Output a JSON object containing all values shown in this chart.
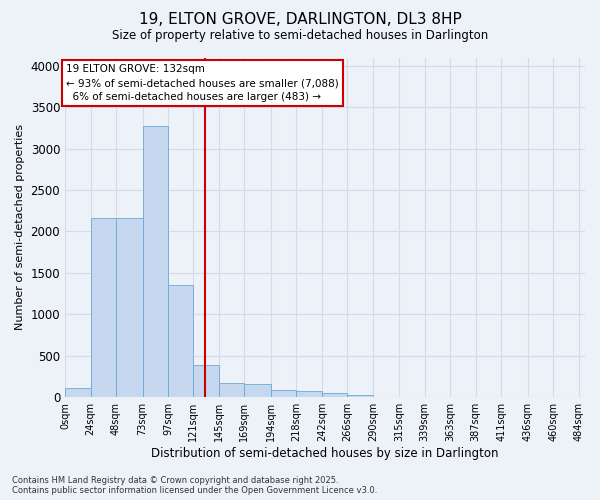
{
  "title": "19, ELTON GROVE, DARLINGTON, DL3 8HP",
  "subtitle": "Size of property relative to semi-detached houses in Darlington",
  "xlabel": "Distribution of semi-detached houses by size in Darlington",
  "ylabel": "Number of semi-detached properties",
  "property_label": "19 ELTON GROVE: 132sqm",
  "pct_smaller": 93,
  "count_smaller": 7088,
  "pct_larger": 6,
  "count_larger": 483,
  "bin_labels": [
    "0sqm",
    "24sqm",
    "48sqm",
    "73sqm",
    "97sqm",
    "121sqm",
    "145sqm",
    "169sqm",
    "194sqm",
    "218sqm",
    "242sqm",
    "266sqm",
    "290sqm",
    "315sqm",
    "339sqm",
    "363sqm",
    "387sqm",
    "411sqm",
    "436sqm",
    "460sqm",
    "484sqm"
  ],
  "bin_edges": [
    0,
    24,
    48,
    73,
    97,
    121,
    145,
    169,
    194,
    218,
    242,
    266,
    290,
    315,
    339,
    363,
    387,
    411,
    436,
    460,
    484
  ],
  "bar_heights": [
    110,
    2160,
    2160,
    3270,
    1350,
    390,
    170,
    160,
    90,
    80,
    45,
    30,
    5,
    0,
    0,
    0,
    0,
    0,
    0,
    0
  ],
  "bar_color": "#c5d8ef",
  "bar_edge_color": "#6aaad4",
  "vline_x": 132,
  "vline_color": "#cc0000",
  "grid_color": "#d0dce8",
  "background_color": "#edf2f9",
  "ylim": [
    0,
    4100
  ],
  "yticks": [
    0,
    500,
    1000,
    1500,
    2000,
    2500,
    3000,
    3500,
    4000
  ],
  "footer": "Contains HM Land Registry data © Crown copyright and database right 2025.\nContains public sector information licensed under the Open Government Licence v3.0.",
  "annotation_box_color": "#cc0000"
}
